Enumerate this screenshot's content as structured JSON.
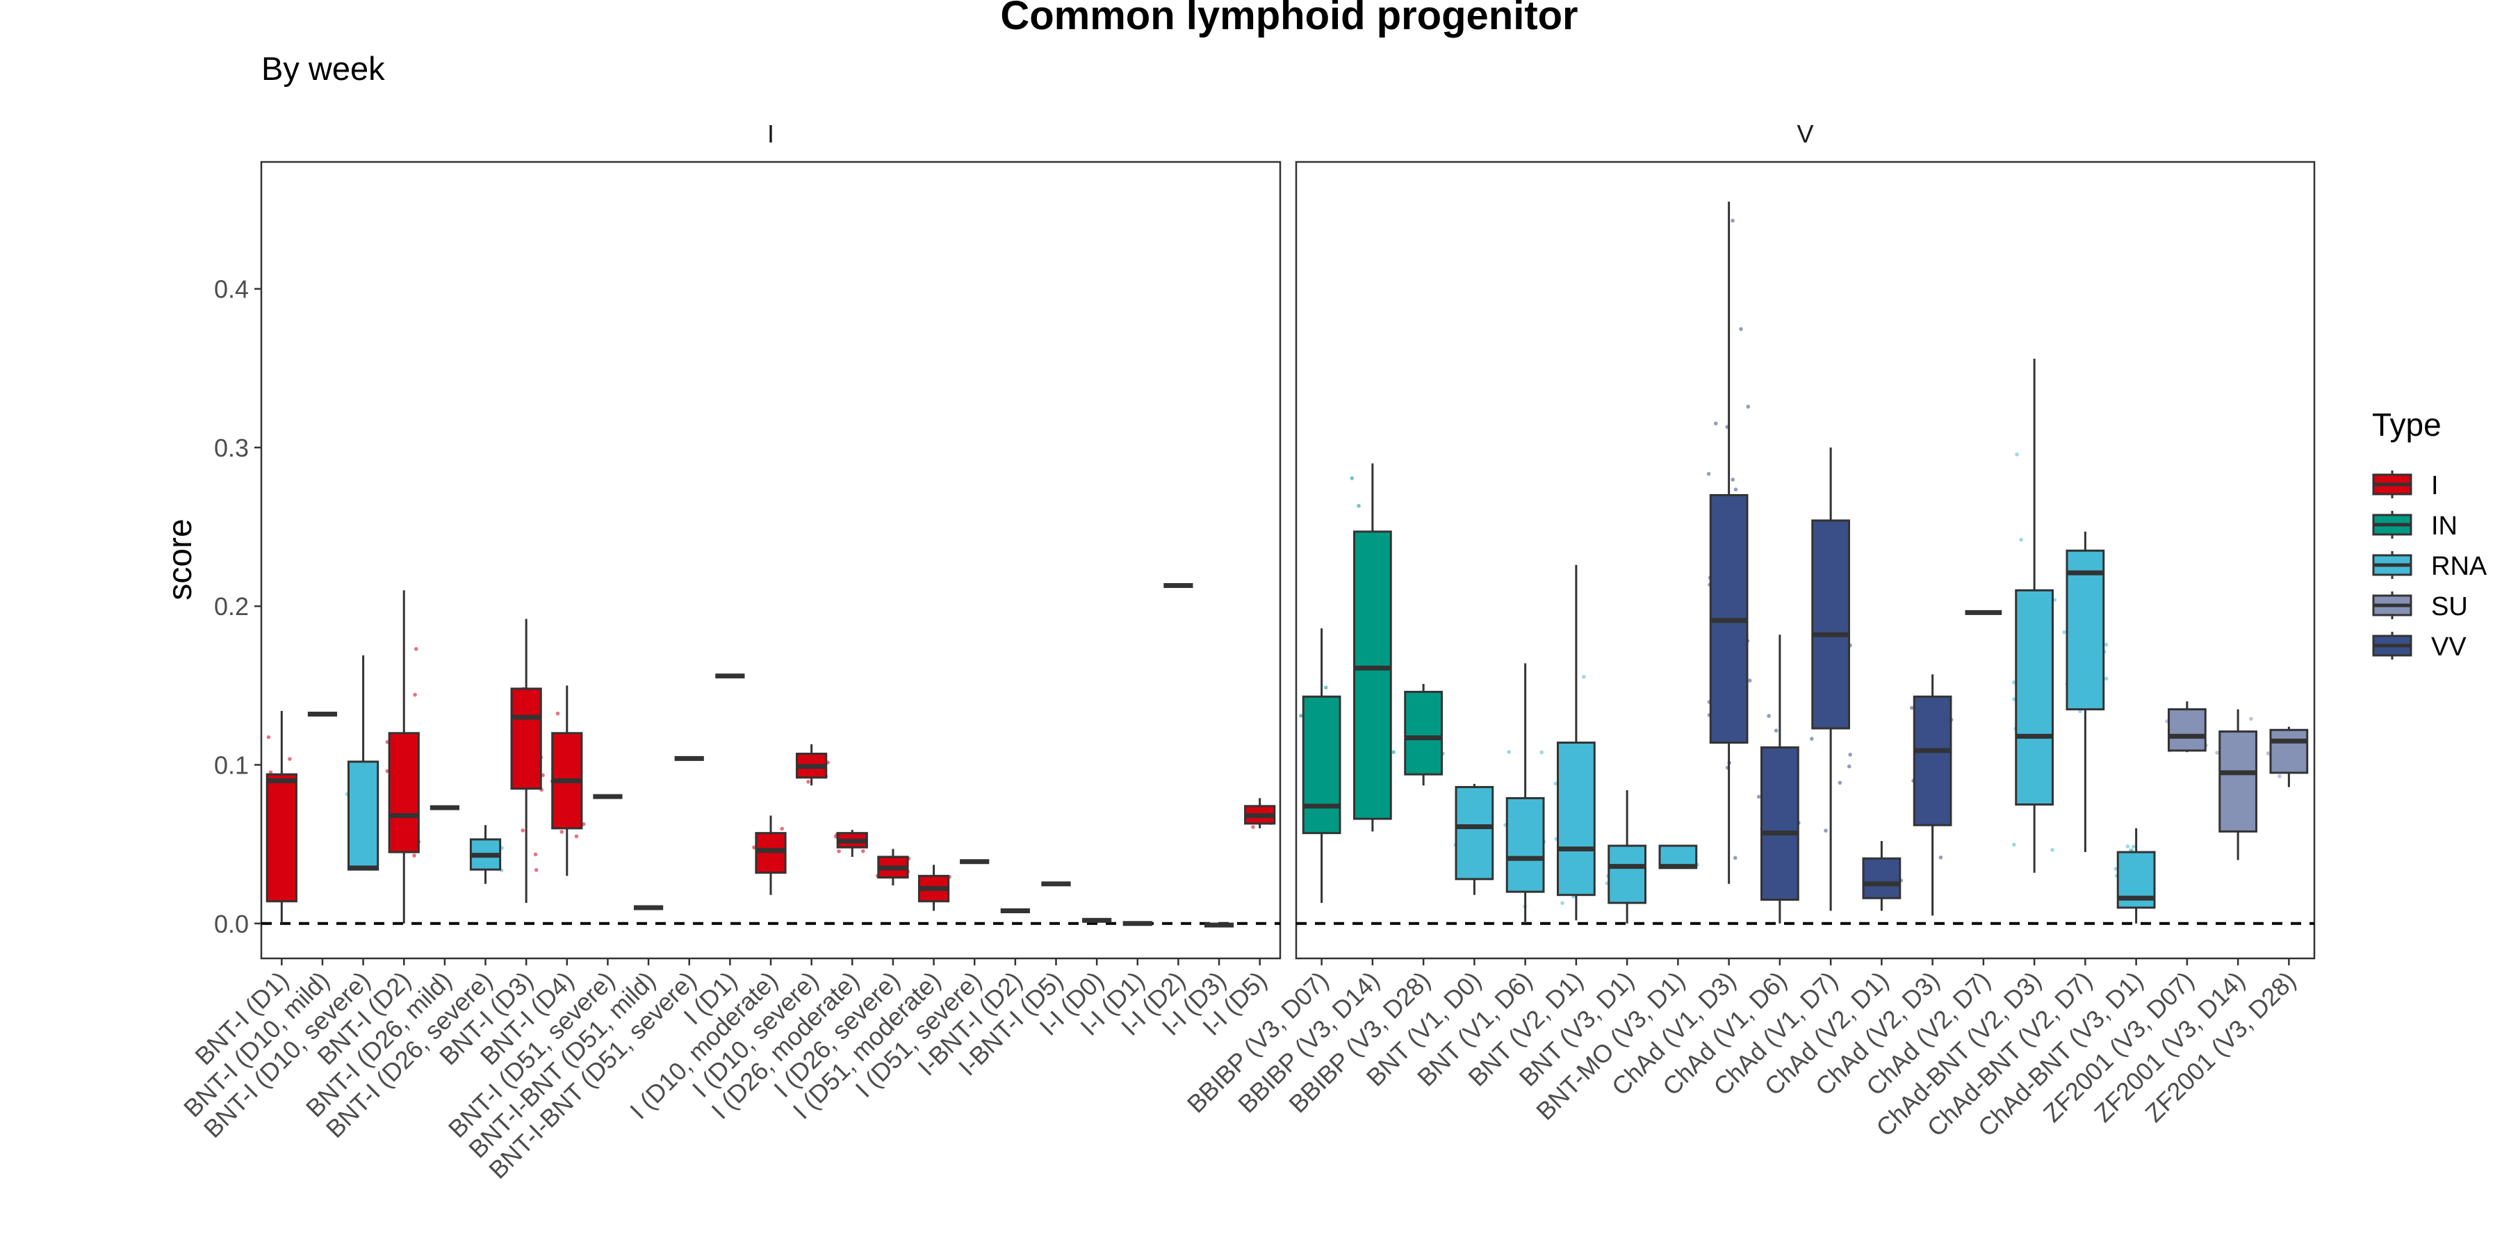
{
  "chart_data": {
    "type": "box",
    "title": "Common lymphoid progenitor",
    "subtitle": "By week",
    "ylabel": "score",
    "xlabel": "",
    "ylim": [
      -0.022,
      0.48
    ],
    "yticks": [
      0.0,
      0.1,
      0.2,
      0.3,
      0.4
    ],
    "ytick_labels": [
      "0.0",
      "0.1",
      "0.2",
      "0.3",
      "0.4"
    ],
    "reference_line": 0,
    "grid": false,
    "legend": {
      "title": "Type",
      "placement": "right",
      "items": [
        {
          "name": "I",
          "color": "#D7000F"
        },
        {
          "name": "IN",
          "color": "#009A84"
        },
        {
          "name": "RNA",
          "color": "#45BAD6"
        },
        {
          "name": "SU",
          "color": "#8591B5"
        },
        {
          "name": "VV",
          "color": "#3A4F87"
        }
      ]
    },
    "panels": [
      {
        "label": "I",
        "boxes": [
          {
            "cat": "BNT-I (D1)",
            "type": "I",
            "min": 0.0,
            "q1": 0.014,
            "median": 0.09,
            "q3": 0.094,
            "max": 0.134
          },
          {
            "cat": "BNT-I (D10, mild)",
            "type": "I",
            "min": 0.132,
            "q1": 0.132,
            "median": 0.132,
            "q3": 0.132,
            "max": 0.132
          },
          {
            "cat": "BNT-I (D10, severe)",
            "type": "RNA",
            "min": 0.034,
            "q1": 0.034,
            "median": 0.035,
            "q3": 0.102,
            "max": 0.169
          },
          {
            "cat": "BNT-I (D2)",
            "type": "I",
            "min": 0.0,
            "q1": 0.045,
            "median": 0.068,
            "q3": 0.12,
            "max": 0.21
          },
          {
            "cat": "BNT-I (D26, mild)",
            "type": "I",
            "min": 0.073,
            "q1": 0.073,
            "median": 0.073,
            "q3": 0.073,
            "max": 0.073
          },
          {
            "cat": "BNT-I (D26, severe)",
            "type": "RNA",
            "min": 0.025,
            "q1": 0.034,
            "median": 0.043,
            "q3": 0.053,
            "max": 0.062
          },
          {
            "cat": "BNT-I (D3)",
            "type": "I",
            "min": 0.013,
            "q1": 0.085,
            "median": 0.13,
            "q3": 0.148,
            "max": 0.192
          },
          {
            "cat": "BNT-I (D4)",
            "type": "I",
            "min": 0.03,
            "q1": 0.06,
            "median": 0.09,
            "q3": 0.12,
            "max": 0.15
          },
          {
            "cat": "BNT-I (D51, severe)",
            "type": "I",
            "min": 0.08,
            "q1": 0.08,
            "median": 0.08,
            "q3": 0.08,
            "max": 0.08
          },
          {
            "cat": "BNT-I-BNT (D51, mild)",
            "type": "I",
            "min": 0.01,
            "q1": 0.01,
            "median": 0.01,
            "q3": 0.01,
            "max": 0.01
          },
          {
            "cat": "BNT-I-BNT (D51, severe)",
            "type": "I",
            "min": 0.104,
            "q1": 0.104,
            "median": 0.104,
            "q3": 0.104,
            "max": 0.104
          },
          {
            "cat": "I (D1)",
            "type": "I",
            "min": 0.156,
            "q1": 0.156,
            "median": 0.156,
            "q3": 0.156,
            "max": 0.156
          },
          {
            "cat": "I (D10, moderate)",
            "type": "I",
            "min": 0.018,
            "q1": 0.032,
            "median": 0.046,
            "q3": 0.057,
            "max": 0.068
          },
          {
            "cat": "I (D10, severe)",
            "type": "I",
            "min": 0.087,
            "q1": 0.092,
            "median": 0.099,
            "q3": 0.107,
            "max": 0.113
          },
          {
            "cat": "I (D26, moderate)",
            "type": "I",
            "min": 0.042,
            "q1": 0.048,
            "median": 0.052,
            "q3": 0.057,
            "max": 0.059
          },
          {
            "cat": "I (D26, severe)",
            "type": "I",
            "min": 0.024,
            "q1": 0.029,
            "median": 0.035,
            "q3": 0.042,
            "max": 0.047
          },
          {
            "cat": "I (D51, moderate)",
            "type": "I",
            "min": 0.008,
            "q1": 0.014,
            "median": 0.022,
            "q3": 0.03,
            "max": 0.037
          },
          {
            "cat": "I (D51, severe)",
            "type": "I",
            "min": 0.039,
            "q1": 0.039,
            "median": 0.039,
            "q3": 0.039,
            "max": 0.039
          },
          {
            "cat": "I-BNT-I (D2)",
            "type": "I",
            "min": 0.008,
            "q1": 0.008,
            "median": 0.008,
            "q3": 0.008,
            "max": 0.008
          },
          {
            "cat": "I-BNT-I (D5)",
            "type": "I",
            "min": 0.025,
            "q1": 0.025,
            "median": 0.025,
            "q3": 0.025,
            "max": 0.025
          },
          {
            "cat": "I-I (D0)",
            "type": "I",
            "min": 0.002,
            "q1": 0.002,
            "median": 0.002,
            "q3": 0.002,
            "max": 0.002
          },
          {
            "cat": "I-I (D1)",
            "type": "I",
            "min": 0.0,
            "q1": 0.0,
            "median": 0.0,
            "q3": 0.0,
            "max": 0.0
          },
          {
            "cat": "I-I (D2)",
            "type": "I",
            "min": 0.213,
            "q1": 0.213,
            "median": 0.213,
            "q3": 0.213,
            "max": 0.213
          },
          {
            "cat": "I-I (D3)",
            "type": "I",
            "min": -0.001,
            "q1": -0.001,
            "median": -0.001,
            "q3": -0.001,
            "max": -0.001
          },
          {
            "cat": "I-I (D5)",
            "type": "I",
            "min": 0.06,
            "q1": 0.063,
            "median": 0.068,
            "q3": 0.074,
            "max": 0.079
          }
        ]
      },
      {
        "label": "V",
        "boxes": [
          {
            "cat": "BBIBP (V3, D07)",
            "type": "IN",
            "min": 0.013,
            "q1": 0.057,
            "median": 0.074,
            "q3": 0.143,
            "max": 0.186
          },
          {
            "cat": "BBIBP (V3, D14)",
            "type": "IN",
            "min": 0.058,
            "q1": 0.066,
            "median": 0.161,
            "q3": 0.247,
            "max": 0.29
          },
          {
            "cat": "BBIBP (V3, D28)",
            "type": "IN",
            "min": 0.087,
            "q1": 0.094,
            "median": 0.117,
            "q3": 0.146,
            "max": 0.151
          },
          {
            "cat": "BNT (V1, D0)",
            "type": "RNA",
            "min": 0.018,
            "q1": 0.028,
            "median": 0.061,
            "q3": 0.086,
            "max": 0.088
          },
          {
            "cat": "BNT (V1, D6)",
            "type": "RNA",
            "min": 0.0,
            "q1": 0.02,
            "median": 0.041,
            "q3": 0.079,
            "max": 0.164
          },
          {
            "cat": "BNT (V2, D1)",
            "type": "RNA",
            "min": 0.002,
            "q1": 0.018,
            "median": 0.047,
            "q3": 0.114,
            "max": 0.226
          },
          {
            "cat": "BNT (V3, D1)",
            "type": "RNA",
            "min": 0.0,
            "q1": 0.013,
            "median": 0.036,
            "q3": 0.049,
            "max": 0.084
          },
          {
            "cat": "BNT-MO (V3, D1)",
            "type": "RNA",
            "min": 0.035,
            "q1": 0.035,
            "median": 0.036,
            "q3": 0.049,
            "max": 0.049
          },
          {
            "cat": "ChAd (V1, D3)",
            "type": "VV",
            "min": 0.025,
            "q1": 0.114,
            "median": 0.191,
            "q3": 0.27,
            "max": 0.455
          },
          {
            "cat": "ChAd (V1, D6)",
            "type": "VV",
            "min": 0.0,
            "q1": 0.015,
            "median": 0.057,
            "q3": 0.111,
            "max": 0.182
          },
          {
            "cat": "ChAd (V1, D7)",
            "type": "VV",
            "min": 0.008,
            "q1": 0.123,
            "median": 0.182,
            "q3": 0.254,
            "max": 0.3
          },
          {
            "cat": "ChAd (V2, D1)",
            "type": "VV",
            "min": 0.008,
            "q1": 0.016,
            "median": 0.025,
            "q3": 0.041,
            "max": 0.052
          },
          {
            "cat": "ChAd (V2, D3)",
            "type": "VV",
            "min": 0.005,
            "q1": 0.062,
            "median": 0.109,
            "q3": 0.143,
            "max": 0.157
          },
          {
            "cat": "ChAd (V2, D7)",
            "type": "VV",
            "min": 0.196,
            "q1": 0.196,
            "median": 0.196,
            "q3": 0.196,
            "max": 0.196
          },
          {
            "cat": "ChAd-BNT (V2, D3)",
            "type": "RNA",
            "min": 0.032,
            "q1": 0.075,
            "median": 0.118,
            "q3": 0.21,
            "max": 0.356
          },
          {
            "cat": "ChAd-BNT (V2, D7)",
            "type": "RNA",
            "min": 0.045,
            "q1": 0.135,
            "median": 0.221,
            "q3": 0.235,
            "max": 0.247
          },
          {
            "cat": "ChAd-BNT (V3, D1)",
            "type": "RNA",
            "min": 0.0,
            "q1": 0.01,
            "median": 0.016,
            "q3": 0.045,
            "max": 0.06
          },
          {
            "cat": "ZF2001 (V3, D07)",
            "type": "SU",
            "min": 0.108,
            "q1": 0.109,
            "median": 0.118,
            "q3": 0.135,
            "max": 0.14
          },
          {
            "cat": "ZF2001 (V3, D14)",
            "type": "SU",
            "min": 0.04,
            "q1": 0.058,
            "median": 0.095,
            "q3": 0.121,
            "max": 0.135
          },
          {
            "cat": "ZF2001 (V3, D28)",
            "type": "SU",
            "min": 0.086,
            "q1": 0.095,
            "median": 0.115,
            "q3": 0.122,
            "max": 0.124
          }
        ]
      }
    ]
  }
}
